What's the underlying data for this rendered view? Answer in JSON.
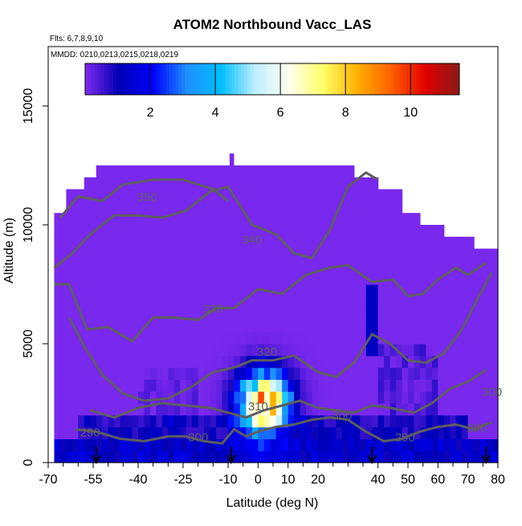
{
  "chart_data": {
    "type": "heatmap",
    "title": "ATOM2 Northbound Vacc_LAS",
    "flights_text": "Flts: 6,7,8,9,10",
    "mmdd_text": "MMDD: 0210,0213,0215,0218,0219",
    "xlabel": "Latitude (deg N)",
    "ylabel": "Altitude (m)",
    "xlim": [
      -70,
      80
    ],
    "ylim": [
      0,
      17500
    ],
    "x_ticks": [
      -70,
      -55,
      -40,
      -25,
      -10,
      0,
      10,
      20,
      40,
      50,
      60,
      70,
      80
    ],
    "x_minor_ticks": [
      -65,
      -60,
      -50,
      -45,
      -35,
      -30,
      -20,
      -15,
      -5,
      5,
      15,
      25,
      30,
      35,
      45,
      55,
      65,
      75
    ],
    "y_ticks": [
      0,
      5000,
      10000,
      15000
    ],
    "colorbar": {
      "min": 0,
      "max": 11.5,
      "ticks": [
        2,
        4,
        6,
        8,
        10
      ],
      "colors": [
        "#7f2af0",
        "#0000b4",
        "#0000ff",
        "#1e90ff",
        "#00bfff",
        "#bfefff",
        "#ffffee",
        "#ffff66",
        "#ffb000",
        "#ff6000",
        "#e00000",
        "#8b1a1a"
      ]
    },
    "arrow_latitudes": [
      -54,
      -9,
      38,
      76
    ],
    "contour_labels": [
      {
        "text": "350",
        "lat": -37,
        "alt": 11000
      },
      {
        "text": "340",
        "lat": -2,
        "alt": 9200
      },
      {
        "text": "330",
        "lat": -15,
        "alt": 6300
      },
      {
        "text": "320",
        "lat": 3,
        "alt": 4500
      },
      {
        "text": "310",
        "lat": 0,
        "alt": 2200
      },
      {
        "text": "300",
        "lat": 28,
        "alt": 1800
      },
      {
        "text": "300",
        "lat": -20,
        "alt": 900
      },
      {
        "text": "290",
        "lat": -56,
        "alt": 1100
      },
      {
        "text": "290",
        "lat": 49,
        "alt": 900
      },
      {
        "text": "290",
        "lat": 73,
        "alt": 1300
      },
      {
        "text": "300",
        "lat": 78,
        "alt": 2800
      }
    ],
    "contours": [
      {
        "level": 350,
        "points": [
          [
            -66,
            10300
          ],
          [
            -60,
            11200
          ],
          [
            -52,
            11000
          ],
          [
            -45,
            11700
          ],
          [
            -35,
            11900
          ],
          [
            -25,
            11900
          ],
          [
            -15,
            11500
          ],
          [
            -10,
            11000
          ]
        ]
      },
      {
        "level": 340,
        "points": [
          [
            -68,
            8200
          ],
          [
            -62,
            8800
          ],
          [
            -56,
            9600
          ],
          [
            -48,
            10400
          ],
          [
            -40,
            10400
          ],
          [
            -32,
            10300
          ],
          [
            -24,
            10600
          ],
          [
            -16,
            11400
          ],
          [
            -10,
            11600
          ],
          [
            -2,
            10000
          ],
          [
            6,
            9600
          ],
          [
            12,
            8800
          ],
          [
            18,
            8600
          ],
          [
            24,
            9800
          ],
          [
            30,
            11600
          ],
          [
            36,
            12200
          ],
          [
            40,
            11900
          ]
        ]
      },
      {
        "level": 330,
        "points": [
          [
            -68,
            7500
          ],
          [
            -63,
            7500
          ],
          [
            -57,
            5600
          ],
          [
            -50,
            5700
          ],
          [
            -42,
            5100
          ],
          [
            -35,
            6100
          ],
          [
            -28,
            6100
          ],
          [
            -20,
            6000
          ],
          [
            -14,
            6500
          ],
          [
            -8,
            6500
          ],
          [
            0,
            7300
          ],
          [
            8,
            7100
          ],
          [
            16,
            7900
          ],
          [
            24,
            8200
          ],
          [
            30,
            8300
          ],
          [
            38,
            7600
          ],
          [
            45,
            7700
          ],
          [
            50,
            7000
          ],
          [
            55,
            7100
          ],
          [
            60,
            7700
          ],
          [
            66,
            8200
          ],
          [
            70,
            7900
          ],
          [
            76,
            8400
          ]
        ]
      },
      {
        "level": 320,
        "points": [
          [
            -63,
            6100
          ],
          [
            -58,
            4900
          ],
          [
            -52,
            3700
          ],
          [
            -45,
            2900
          ],
          [
            -38,
            2600
          ],
          [
            -30,
            2700
          ],
          [
            -22,
            3200
          ],
          [
            -15,
            3800
          ],
          [
            -8,
            4000
          ],
          [
            -2,
            4300
          ],
          [
            5,
            4300
          ],
          [
            12,
            4500
          ],
          [
            20,
            3800
          ],
          [
            26,
            3600
          ],
          [
            32,
            4200
          ],
          [
            38,
            5400
          ],
          [
            44,
            5000
          ],
          [
            50,
            4300
          ],
          [
            56,
            4200
          ],
          [
            62,
            4600
          ],
          [
            68,
            5600
          ],
          [
            72,
            6600
          ],
          [
            78,
            8000
          ]
        ]
      },
      {
        "level": 310,
        "points": [
          [
            -56,
            2200
          ],
          [
            -48,
            1900
          ],
          [
            -40,
            2300
          ],
          [
            -32,
            2500
          ],
          [
            -24,
            2400
          ],
          [
            -16,
            2300
          ],
          [
            -10,
            2100
          ],
          [
            -4,
            1900
          ],
          [
            2,
            2200
          ],
          [
            8,
            2400
          ],
          [
            14,
            2600
          ],
          [
            20,
            2300
          ],
          [
            26,
            2200
          ],
          [
            32,
            2100
          ],
          [
            38,
            2400
          ],
          [
            44,
            2300
          ],
          [
            52,
            2100
          ],
          [
            58,
            2500
          ],
          [
            64,
            3100
          ],
          [
            70,
            3400
          ],
          [
            76,
            3900
          ]
        ]
      },
      {
        "level": 300,
        "points": [
          [
            -61,
            1400
          ],
          [
            -54,
            1300
          ],
          [
            -46,
            1000
          ],
          [
            -38,
            900
          ],
          [
            -30,
            1100
          ],
          [
            -24,
            1100
          ],
          [
            -18,
            900
          ],
          [
            -12,
            800
          ],
          [
            -8,
            1400
          ],
          [
            -4,
            1100
          ],
          [
            0,
            1300
          ],
          [
            6,
            1500
          ],
          [
            12,
            1600
          ],
          [
            18,
            1800
          ],
          [
            24,
            1900
          ],
          [
            30,
            1800
          ],
          [
            36,
            1300
          ],
          [
            42,
            900
          ],
          [
            48,
            1000
          ],
          [
            54,
            1300
          ],
          [
            60,
            1500
          ],
          [
            66,
            1600
          ],
          [
            72,
            1400
          ],
          [
            78,
            1700
          ]
        ]
      }
    ]
  }
}
